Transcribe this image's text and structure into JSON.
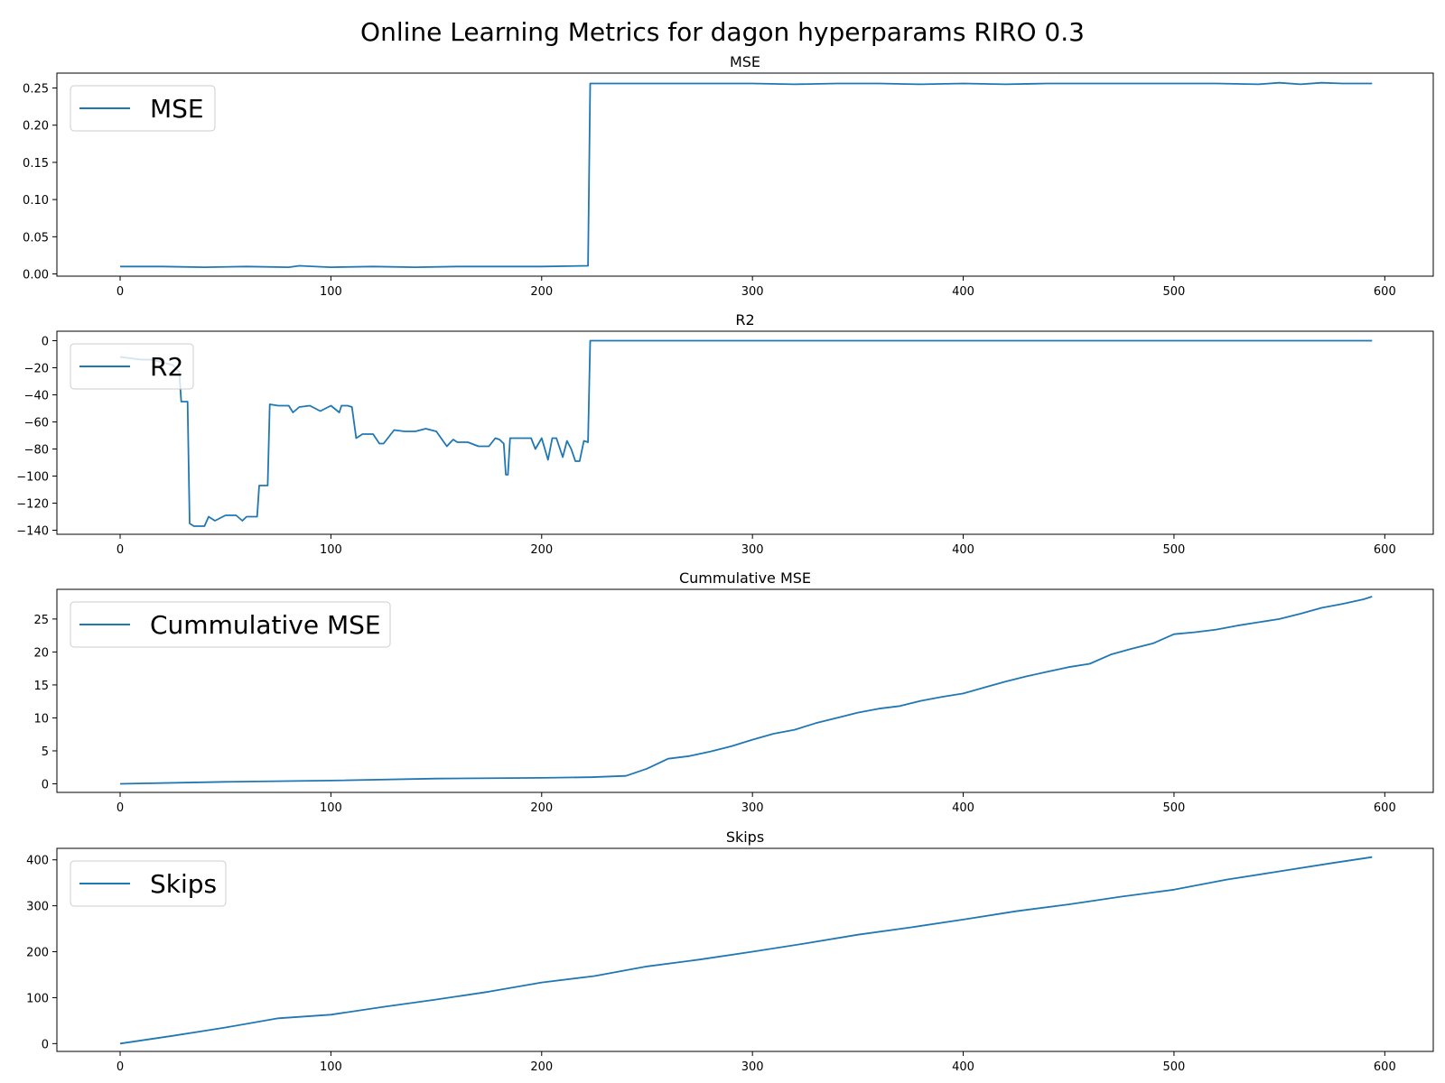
{
  "title": "Online Learning Metrics for dagon hyperparams RIRO 0.3",
  "colors": {
    "line": "#1f77b4",
    "axes": "#000000",
    "legend_border": "#cccccc"
  },
  "chart_data": [
    {
      "type": "line",
      "title": "MSE",
      "xlabel": "",
      "ylabel": "",
      "xlim": [
        -30,
        623
      ],
      "ylim": [
        -0.003,
        0.27
      ],
      "xticks": [
        "0",
        "100",
        "200",
        "300",
        "400",
        "500",
        "600"
      ],
      "xtick_values": [
        0,
        100,
        200,
        300,
        400,
        500,
        600
      ],
      "yticks": [
        "0.00",
        "0.05",
        "0.10",
        "0.15",
        "0.20",
        "0.25"
      ],
      "ytick_values": [
        0,
        0.05,
        0.1,
        0.15,
        0.2,
        0.25
      ],
      "legend": "upper-left",
      "grid": false,
      "series": [
        {
          "name": "MSE",
          "x": [
            0,
            20,
            40,
            60,
            80,
            85,
            100,
            120,
            140,
            160,
            180,
            200,
            222,
            223,
            230,
            240,
            260,
            280,
            300,
            320,
            340,
            360,
            380,
            400,
            420,
            440,
            460,
            480,
            500,
            520,
            540,
            550,
            560,
            570,
            580,
            594
          ],
          "y": [
            0.01,
            0.01,
            0.009,
            0.01,
            0.009,
            0.011,
            0.009,
            0.01,
            0.009,
            0.01,
            0.01,
            0.01,
            0.011,
            0.256,
            0.256,
            0.256,
            0.256,
            0.256,
            0.256,
            0.255,
            0.256,
            0.256,
            0.255,
            0.256,
            0.255,
            0.256,
            0.256,
            0.256,
            0.256,
            0.256,
            0.255,
            0.257,
            0.255,
            0.257,
            0.256,
            0.256
          ]
        }
      ]
    },
    {
      "type": "line",
      "title": "R2",
      "xlabel": "",
      "ylabel": "",
      "xlim": [
        -30,
        623
      ],
      "ylim": [
        -143,
        7
      ],
      "xticks": [
        "0",
        "100",
        "200",
        "300",
        "400",
        "500",
        "600"
      ],
      "xtick_values": [
        0,
        100,
        200,
        300,
        400,
        500,
        600
      ],
      "yticks": [
        "0",
        "−20",
        "−40",
        "−60",
        "−80",
        "−100",
        "−120",
        "−140"
      ],
      "ytick_values": [
        0,
        -20,
        -40,
        -60,
        -80,
        -100,
        -120,
        -140
      ],
      "legend": "upper-left",
      "grid": false,
      "series": [
        {
          "name": "R2",
          "x": [
            0,
            5,
            10,
            15,
            20,
            25,
            28,
            29,
            30,
            32,
            33,
            35,
            40,
            42,
            45,
            50,
            55,
            58,
            60,
            65,
            66,
            68,
            70,
            71,
            75,
            80,
            82,
            85,
            90,
            95,
            100,
            104,
            105,
            108,
            110,
            112,
            115,
            120,
            123,
            125,
            130,
            135,
            140,
            145,
            150,
            155,
            158,
            160,
            165,
            170,
            175,
            178,
            180,
            182,
            183,
            184,
            185,
            190,
            195,
            197,
            200,
            203,
            205,
            207,
            210,
            212,
            214,
            216,
            218,
            220,
            222,
            223,
            300,
            400,
            500,
            594
          ],
          "y": [
            -12,
            -13,
            -14,
            -14,
            -16,
            -18,
            -23,
            -45,
            -45,
            -45,
            -135,
            -137,
            -137,
            -130,
            -133,
            -129,
            -129,
            -133,
            -130,
            -130,
            -107,
            -107,
            -107,
            -47,
            -48,
            -48,
            -53,
            -49,
            -48,
            -52,
            -48,
            -53,
            -48,
            -48,
            -49,
            -72,
            -69,
            -69,
            -76,
            -76,
            -66,
            -67,
            -67,
            -65,
            -67,
            -78,
            -73,
            -75,
            -75,
            -78,
            -78,
            -72,
            -73,
            -76,
            -99,
            -99,
            -72,
            -72,
            -72,
            -80,
            -72,
            -88,
            -72,
            -72,
            -86,
            -74,
            -80,
            -89,
            -89,
            -74,
            -75,
            0,
            0,
            0,
            0,
            0
          ]
        }
      ]
    },
    {
      "type": "line",
      "title": "Cummulative MSE",
      "xlabel": "",
      "ylabel": "",
      "xlim": [
        -30,
        623
      ],
      "ylim": [
        -1.3,
        29.5
      ],
      "xticks": [
        "0",
        "100",
        "200",
        "300",
        "400",
        "500",
        "600"
      ],
      "xtick_values": [
        0,
        100,
        200,
        300,
        400,
        500,
        600
      ],
      "yticks": [
        "0",
        "5",
        "10",
        "15",
        "20",
        "25"
      ],
      "ytick_values": [
        0,
        5,
        10,
        15,
        20,
        25
      ],
      "legend": "upper-left",
      "grid": false,
      "series": [
        {
          "name": "Cummulative MSE",
          "x": [
            0,
            50,
            100,
            150,
            200,
            222,
            223,
            240,
            250,
            260,
            270,
            280,
            290,
            300,
            310,
            320,
            330,
            340,
            350,
            360,
            370,
            380,
            390,
            400,
            410,
            420,
            430,
            440,
            450,
            460,
            470,
            480,
            490,
            500,
            510,
            520,
            530,
            540,
            550,
            560,
            570,
            580,
            590,
            594
          ],
          "y": [
            0.0,
            0.3,
            0.5,
            0.8,
            0.9,
            1.0,
            1.0,
            1.2,
            2.3,
            3.8,
            4.2,
            4.9,
            5.7,
            6.7,
            7.6,
            8.2,
            9.2,
            10.0,
            10.8,
            11.4,
            11.8,
            12.6,
            13.2,
            13.7,
            14.6,
            15.5,
            16.3,
            17.0,
            17.7,
            18.2,
            19.6,
            20.5,
            21.3,
            22.7,
            23.0,
            23.4,
            24.0,
            24.5,
            25.0,
            25.8,
            26.7,
            27.3,
            28.0,
            28.4
          ]
        }
      ]
    },
    {
      "type": "line",
      "title": "Skips",
      "xlabel": "",
      "ylabel": "",
      "xlim": [
        -30,
        623
      ],
      "ylim": [
        -17,
        425
      ],
      "xticks": [
        "0",
        "100",
        "200",
        "300",
        "400",
        "500",
        "600"
      ],
      "xtick_values": [
        0,
        100,
        200,
        300,
        400,
        500,
        600
      ],
      "yticks": [
        "0",
        "100",
        "200",
        "300",
        "400"
      ],
      "ytick_values": [
        0,
        100,
        200,
        300,
        400
      ],
      "legend": "upper-left",
      "grid": false,
      "series": [
        {
          "name": "Skips",
          "x": [
            0,
            25,
            50,
            75,
            100,
            125,
            150,
            175,
            200,
            225,
            250,
            275,
            300,
            325,
            350,
            375,
            400,
            425,
            450,
            475,
            500,
            525,
            550,
            575,
            594
          ],
          "y": [
            0,
            17,
            35,
            55,
            63,
            80,
            96,
            113,
            133,
            147,
            168,
            183,
            200,
            218,
            237,
            253,
            270,
            288,
            303,
            320,
            335,
            357,
            375,
            393,
            406
          ]
        }
      ]
    }
  ]
}
